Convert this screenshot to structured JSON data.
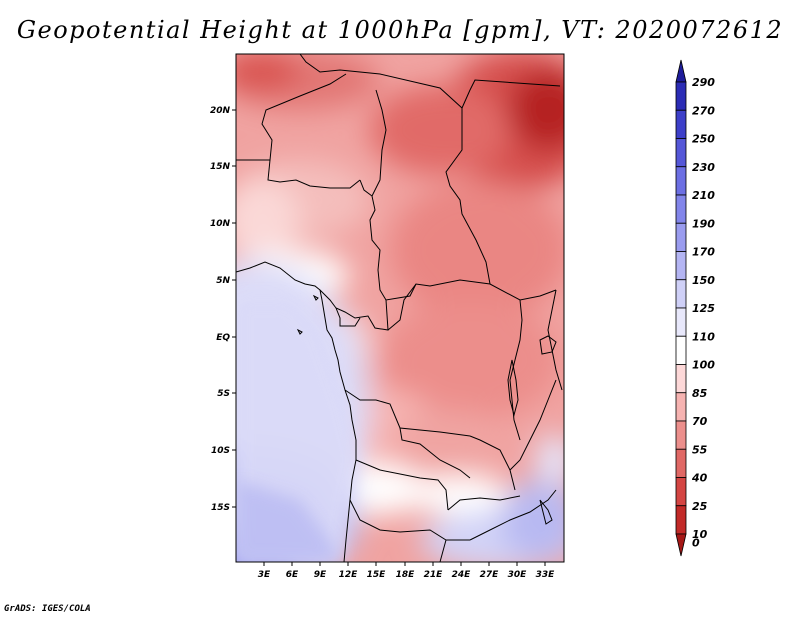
{
  "title": "Geopotential Height at 1000hPa [gpm], VT: 2020072612",
  "credit": "GrADS: IGES/COLA",
  "map": {
    "lon_range": [
      0,
      35
    ],
    "lat_range": [
      -20,
      25
    ],
    "lat_ticks": [
      "20N",
      "15N",
      "10N",
      "5N",
      "EQ",
      "5S",
      "10S",
      "15S"
    ],
    "lon_ticks": [
      "3E",
      "6E",
      "9E",
      "12E",
      "15E",
      "18E",
      "21E",
      "24E",
      "27E",
      "30E",
      "33E"
    ]
  },
  "colorbar": {
    "labels": [
      "290",
      "270",
      "250",
      "230",
      "210",
      "190",
      "170",
      "150",
      "125",
      "110",
      "100",
      "85",
      "70",
      "55",
      "40",
      "25",
      "10",
      "0"
    ],
    "colors": [
      "#1e1c9a",
      "#2b2cb5",
      "#3d3fc9",
      "#5557d8",
      "#6c6fe3",
      "#8285ea",
      "#9a9cef",
      "#b4b5f3",
      "#cfd0f7",
      "#e8e8fb",
      "#ffffff",
      "#fdd8d8",
      "#f6b3b1",
      "#ec8f8c",
      "#e06865",
      "#d44543",
      "#c22a28",
      "#a51716"
    ]
  }
}
